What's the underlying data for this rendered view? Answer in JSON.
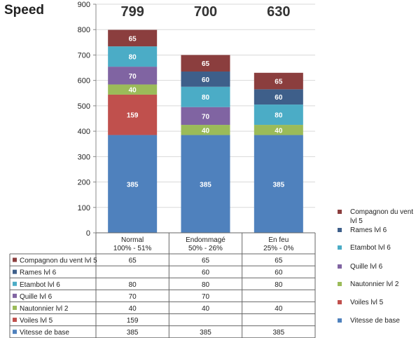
{
  "chart_data": {
    "type": "stacked-bar",
    "title": "Speed",
    "categories": [
      {
        "line1": "Normal",
        "line2": "100% - 51%"
      },
      {
        "line1": "Endommagé",
        "line2": "50% - 26%"
      },
      {
        "line1": "En feu",
        "line2": "25% - 0%"
      }
    ],
    "totals": [
      "799",
      "700",
      "630"
    ],
    "ylim": [
      0,
      900
    ],
    "yticks": [
      0,
      100,
      200,
      300,
      400,
      500,
      600,
      700,
      800,
      900
    ],
    "grid": true,
    "legend_position": "right",
    "series": [
      {
        "name": "Vitesse de base",
        "color": "#4f81bd",
        "values": [
          385,
          385,
          385
        ]
      },
      {
        "name": "Voiles lvl 5",
        "color": "#c0504d",
        "values": [
          159,
          null,
          null
        ]
      },
      {
        "name": "Nautonnier lvl 2",
        "color": "#9bbb59",
        "values": [
          40,
          40,
          40
        ]
      },
      {
        "name": "Quille lvl 6",
        "color": "#8064a2",
        "values": [
          70,
          70,
          null
        ]
      },
      {
        "name": "Etambot lvl 6",
        "color": "#4bacc6",
        "values": [
          80,
          80,
          80
        ]
      },
      {
        "name": "Rames lvl 6",
        "color": "#3e5f8a",
        "values": [
          null,
          60,
          60
        ]
      },
      {
        "name": "Compagnon du vent lvl 5",
        "color": "#8b3e3e",
        "values": [
          65,
          65,
          65
        ]
      }
    ]
  },
  "legend": {
    "compagnon_line1": "Compagnon du vent",
    "compagnon_line2": "lvl 5"
  }
}
